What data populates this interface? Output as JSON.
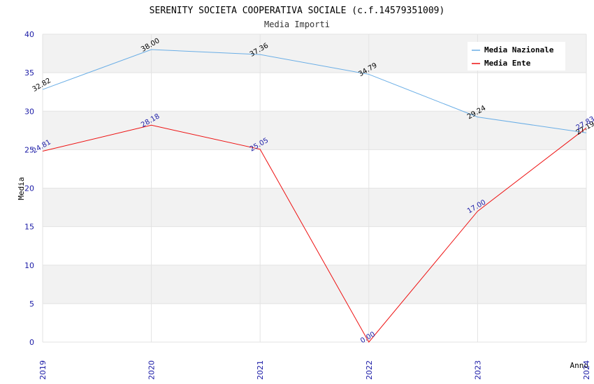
{
  "chart_data": {
    "type": "line",
    "title": "SERENITY SOCIETA COOPERATIVA SOCIALE (c.f.14579351009)",
    "subtitle": "Media Importi",
    "xlabel": "Anno",
    "ylabel": "Media",
    "ylim": [
      0,
      40
    ],
    "yticks": [
      "0",
      "5",
      "10",
      "15",
      "20",
      "25",
      "30",
      "35",
      "40"
    ],
    "categories": [
      "2019",
      "2020",
      "2021",
      "2022",
      "2023",
      "2024"
    ],
    "series": [
      {
        "name": "Media Nazionale",
        "color": "#6aaee6",
        "label_color": "#000000",
        "values": [
          32.82,
          38.0,
          37.36,
          34.79,
          29.24,
          27.19
        ],
        "labels": [
          "32.82",
          "38.00",
          "37.36",
          "34.79",
          "29.24",
          "27.19"
        ]
      },
      {
        "name": "Media Ente",
        "color": "#ee1111",
        "label_color": "#1a1aa6",
        "values": [
          24.81,
          28.18,
          25.05,
          0.0,
          17.0,
          27.83
        ],
        "labels": [
          "24.81",
          "28.18",
          "25.05",
          "0.00",
          "17.00",
          "27.83"
        ]
      }
    ],
    "legend_position": "top-right",
    "grid": true
  }
}
